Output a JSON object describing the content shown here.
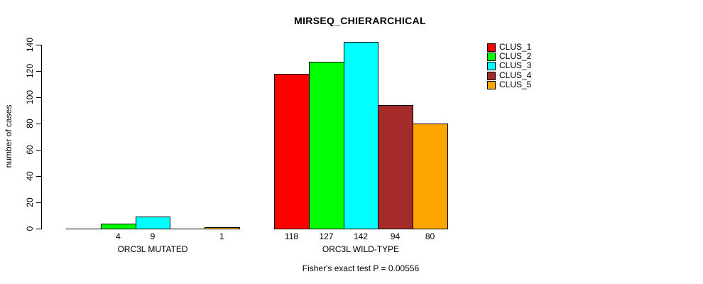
{
  "title": "MIRSEQ_CHIERARCHICAL",
  "chart_data": {
    "type": "bar",
    "title": "MIRSEQ_CHIERARCHICAL",
    "xlabel": "",
    "ylabel": "number of cases",
    "categories": [
      "ORC3L MUTATED",
      "ORC3L WILD-TYPE"
    ],
    "series": [
      {
        "name": "CLUS_1",
        "color": "#ff0000",
        "values": [
          0,
          118
        ]
      },
      {
        "name": "CLUS_2",
        "color": "#00ff00",
        "values": [
          4,
          127
        ]
      },
      {
        "name": "CLUS_3",
        "color": "#00ffff",
        "values": [
          9,
          142
        ]
      },
      {
        "name": "CLUS_4",
        "color": "#a52a2a",
        "values": [
          0,
          94
        ]
      },
      {
        "name": "CLUS_5",
        "color": "#ffa500",
        "values": [
          1,
          80
        ]
      }
    ],
    "bar_value_labels_shown_only_when_nonzero": true,
    "yticks": [
      0,
      20,
      40,
      60,
      80,
      100,
      120,
      140
    ],
    "ylim": [
      0,
      140
    ],
    "grid": "off",
    "legend_position": "top-right",
    "annotation": "Fisher's exact test P = 0.00556"
  },
  "colors": {
    "background": "#ffffff",
    "axis": "#000000",
    "text": "#000000"
  }
}
